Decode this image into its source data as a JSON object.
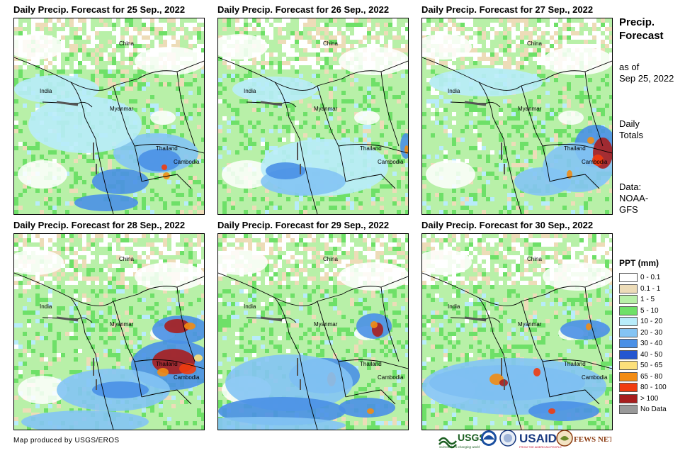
{
  "panels": [
    {
      "title": "Daily Precip. Forecast for 25 Sep., 2022"
    },
    {
      "title": "Daily Precip. Forecast for 26 Sep., 2022"
    },
    {
      "title": "Daily Precip. Forecast for 27 Sep., 2022"
    },
    {
      "title": "Daily Precip. Forecast for 28 Sep., 2022"
    },
    {
      "title": "Daily Precip. Forecast for 29 Sep., 2022"
    },
    {
      "title": "Daily Precip. Forecast for 30 Sep., 2022"
    }
  ],
  "map_labels": {
    "china": "China",
    "india": "India",
    "myanmar": "Myanmar",
    "thailand": "Thailand",
    "cambodia": "Cambodia"
  },
  "sidebar": {
    "title_line1": "Precip.",
    "title_line2": "Forecast",
    "asof_line1": "as of",
    "asof_line2": "Sep 25, 2022",
    "daily_line1": "Daily",
    "daily_line2": "Totals",
    "data_line1": "Data:",
    "data_line2": "NOAA-",
    "data_line3": "GFS"
  },
  "legend": {
    "title": "PPT (mm)",
    "items": [
      {
        "label": "0 - 0.1",
        "color": "#ffffff"
      },
      {
        "label": "0.1 - 1",
        "color": "#eddcb8"
      },
      {
        "label": "1 - 5",
        "color": "#b8f0a8"
      },
      {
        "label": "5 - 10",
        "color": "#6ee068"
      },
      {
        "label": "10 - 20",
        "color": "#b8ecfa"
      },
      {
        "label": "20 - 30",
        "color": "#84c4f4"
      },
      {
        "label": "30 - 40",
        "color": "#4a90e6"
      },
      {
        "label": "40 - 50",
        "color": "#2456d0"
      },
      {
        "label": "50 - 65",
        "color": "#fce07a"
      },
      {
        "label": "65 - 80",
        "color": "#f28c14"
      },
      {
        "label": "80 - 100",
        "color": "#f03c10"
      },
      {
        "label": "> 100",
        "color": "#a81e1e"
      },
      {
        "label": "No Data",
        "color": "#999999"
      }
    ]
  },
  "footer": {
    "credit": "Map produced by USGS/EROS",
    "logo_usgs": "USGS",
    "logo_usgs_tagline": "science for a changing world",
    "logo_usaid": "USAID",
    "logo_usaid_tagline": "FROM THE AMERICAN PEOPLE",
    "logo_fews": "FEWS NET"
  },
  "colors": {
    "green_light": "#b8f0a8",
    "green": "#6ee068",
    "tan": "#eddcb8",
    "sky": "#b8ecfa",
    "blue_light": "#84c4f4",
    "blue": "#4a90e6",
    "blue_dark": "#2456d0",
    "orange": "#f28c14",
    "red": "#f03c10",
    "dark_red": "#a81e1e",
    "yellow": "#fce07a"
  }
}
